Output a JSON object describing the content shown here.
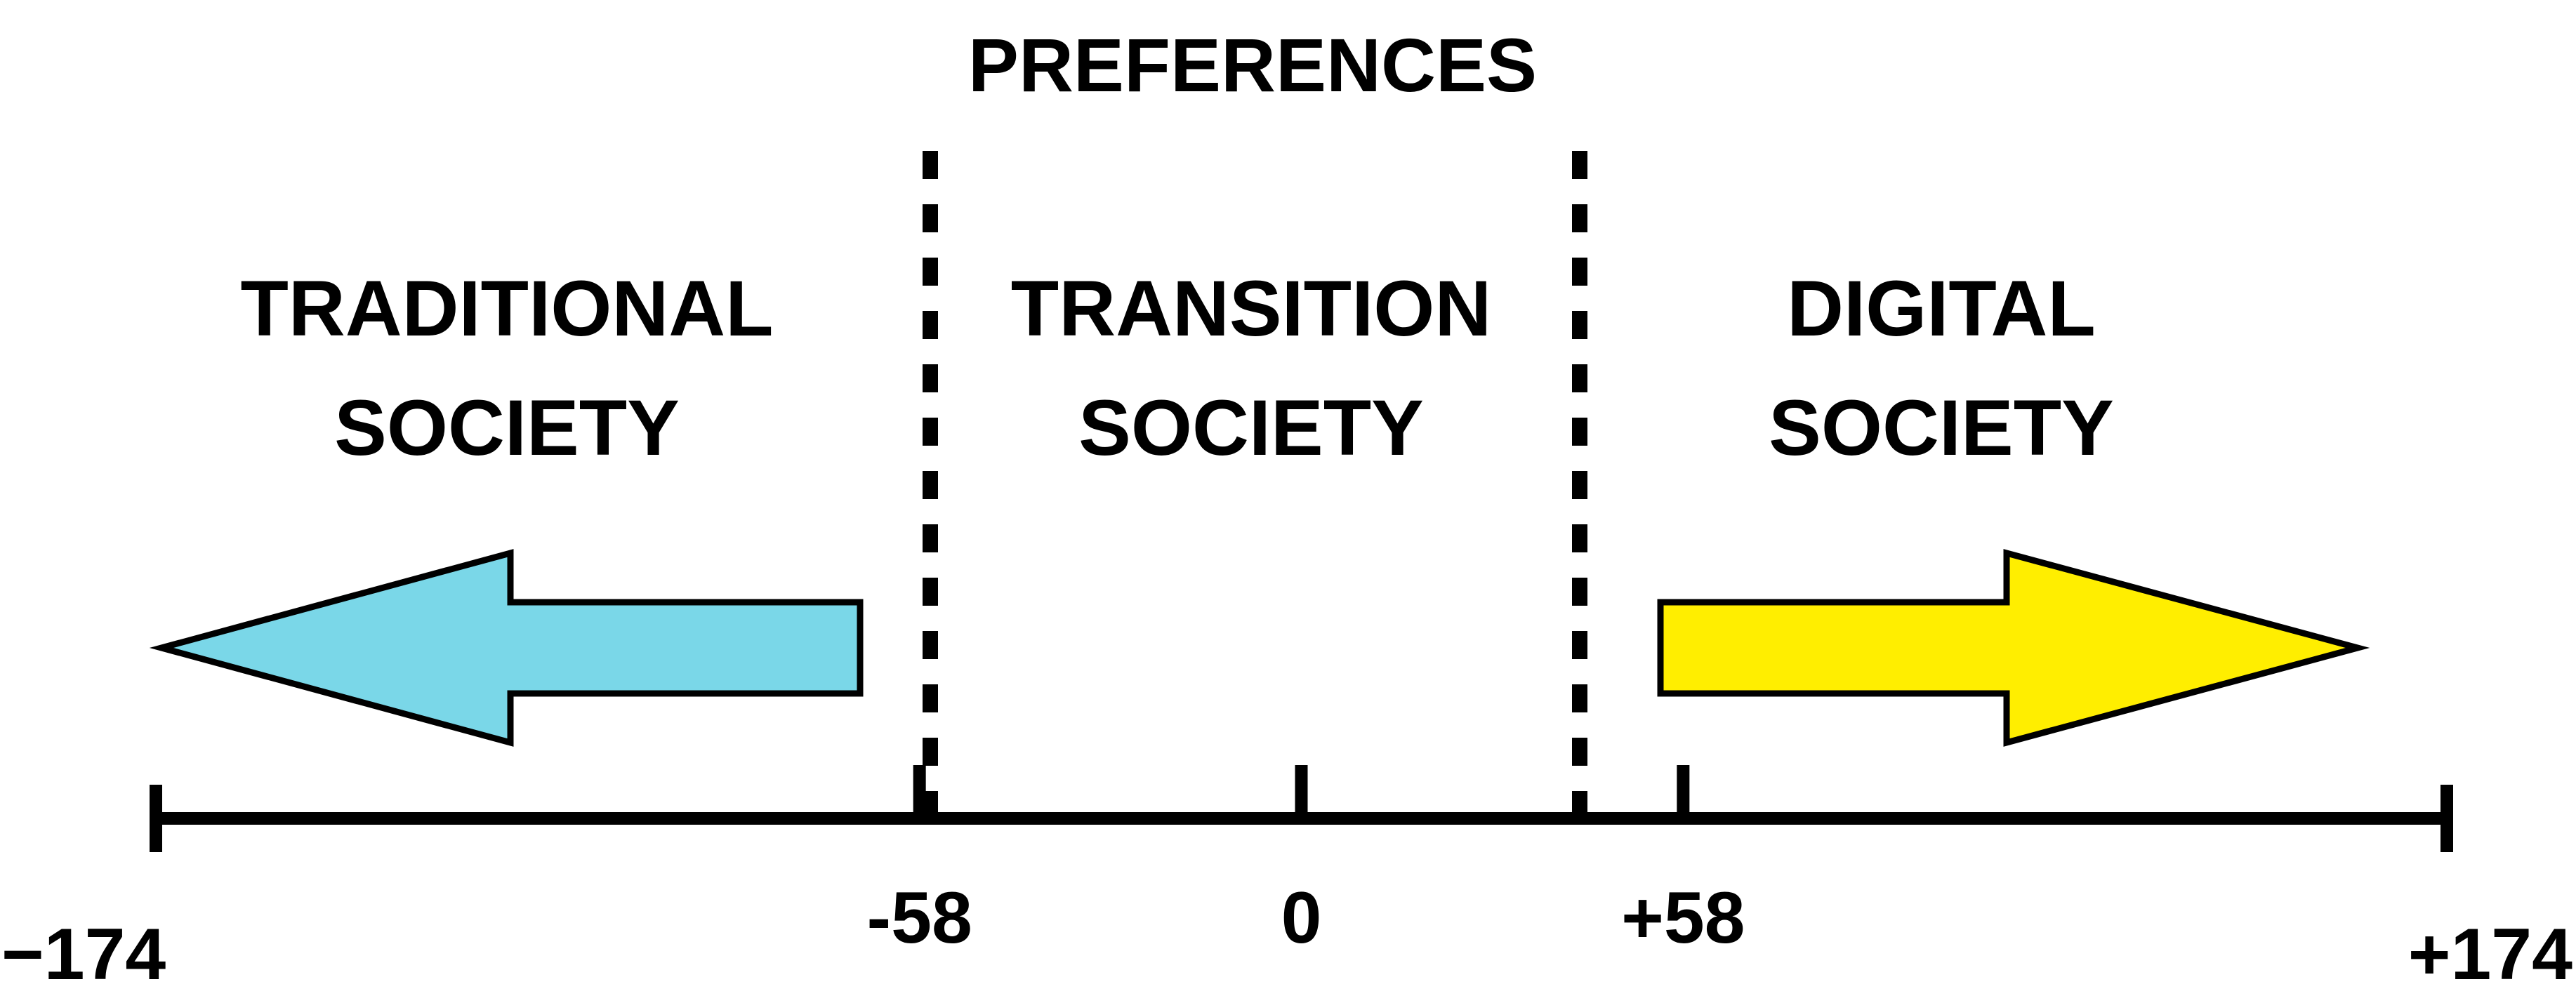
{
  "title": "PREFERENCES",
  "regions": {
    "traditional": {
      "line1": "TRADITIONAL",
      "line2": "SOCIETY"
    },
    "transition": {
      "line1": "TRANSITION",
      "line2": "SOCIETY"
    },
    "digital": {
      "line1": "DIGITAL",
      "line2": "SOCIETY"
    }
  },
  "scale": {
    "min": -174,
    "max": 174,
    "ticks": [
      {
        "value": -174,
        "label": "−174"
      },
      {
        "value": -58,
        "label": "-58"
      },
      {
        "value": 0,
        "label": "0"
      },
      {
        "value": 58,
        "label": "+58"
      },
      {
        "value": 174,
        "label": "+174"
      }
    ]
  },
  "arrows": {
    "left": {
      "direction": "left",
      "color": "#7ad7e8"
    },
    "right": {
      "direction": "right",
      "color": "#ffee00"
    }
  }
}
